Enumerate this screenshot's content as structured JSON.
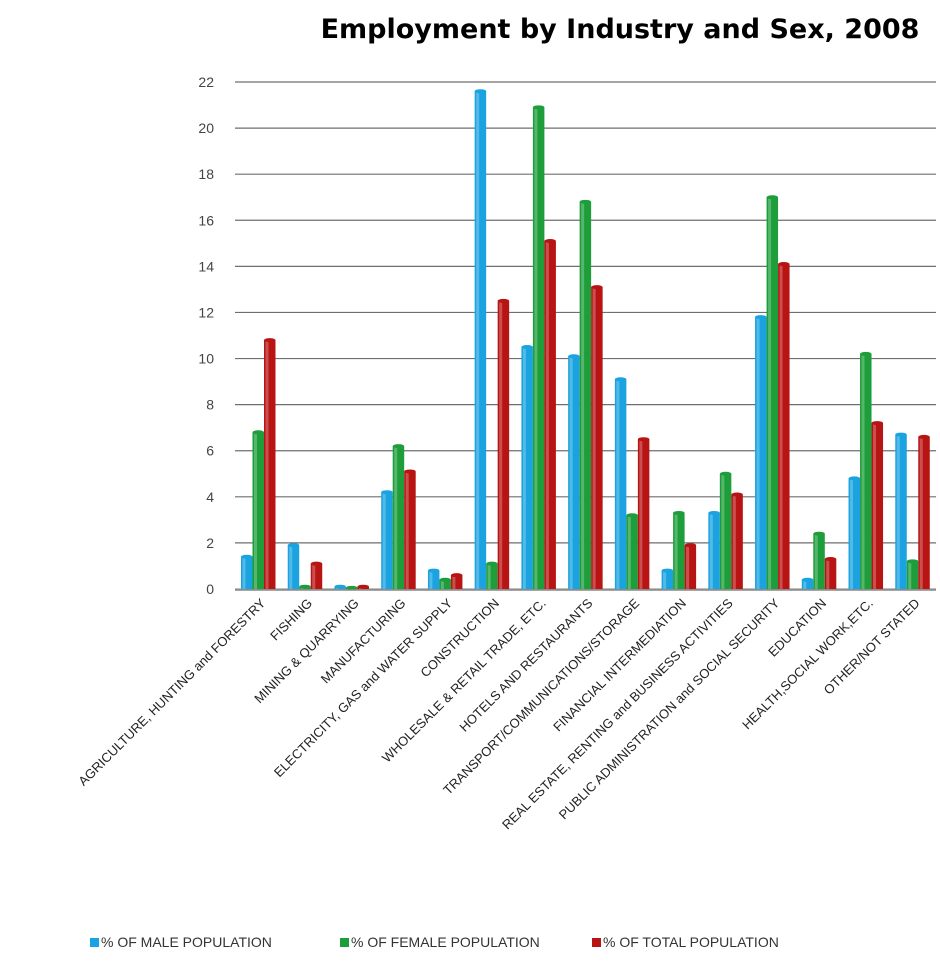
{
  "chart_data": {
    "type": "bar",
    "title": "Employment  by Industry and Sex, 2008",
    "xlabel": "",
    "ylabel": "",
    "ylim": [
      0,
      22
    ],
    "yticks": [
      0,
      2,
      4,
      6,
      8,
      10,
      12,
      14,
      16,
      18,
      20,
      22
    ],
    "grid": true,
    "legend_position": "bottom",
    "categories": [
      "AGRICULTURE, HUNTING and FORESTRY",
      "FISHING",
      "MINING & QUARRYING",
      "MANUFACTURING",
      "ELECTRICITY, GAS and WATER SUPPLY",
      "CONSTRUCTION",
      "WHOLESALE & RETAIL TRADE, ETC.",
      "HOTELS AND RESTAURANTS",
      "TRANSPORT/COMMUNICATIONS/STORAGE",
      "FINANCIAL INTERMEDIATION",
      "REAL ESTATE,  RENTING and BUSINESS ACTIVITIES",
      "PUBLIC ADMINISTRATION and SOCIAL SECURITY",
      "EDUCATION",
      "HEALTH,SOCIAL WORK,ETC.",
      "OTHER/NOT STATED"
    ],
    "series": [
      {
        "name": "% OF MALE POPULATION",
        "color": "#1aa3e0",
        "values": [
          1.4,
          1.9,
          0.1,
          4.2,
          0.8,
          21.6,
          10.5,
          10.1,
          9.1,
          0.8,
          3.3,
          11.8,
          0.4,
          4.8,
          6.7
        ]
      },
      {
        "name": "% OF FEMALE POPULATION",
        "color": "#1e9e3a",
        "values": [
          6.8,
          0.1,
          0.05,
          6.2,
          0.4,
          1.1,
          20.9,
          16.8,
          3.2,
          3.3,
          5.0,
          17.0,
          2.4,
          10.2,
          1.2
        ]
      },
      {
        "name": "% OF TOTAL POPULATION",
        "color": "#b81414",
        "values": [
          10.8,
          1.1,
          0.1,
          5.1,
          0.6,
          12.5,
          15.1,
          13.1,
          6.5,
          1.9,
          4.1,
          14.1,
          1.3,
          7.2,
          6.6
        ]
      }
    ]
  }
}
